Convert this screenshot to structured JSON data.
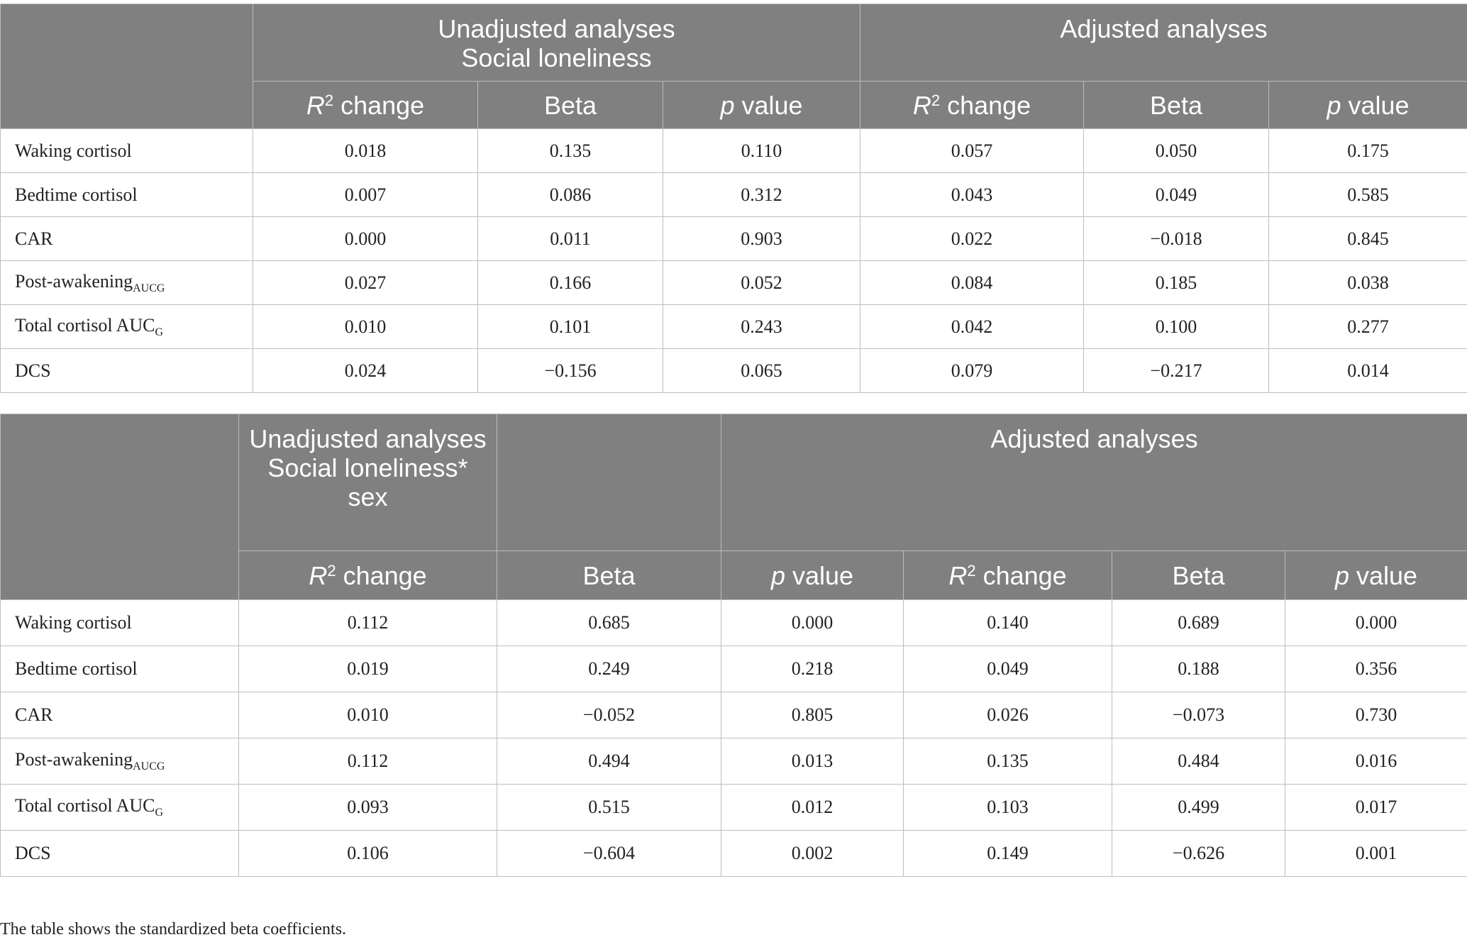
{
  "tables": [
    {
      "groups": [
        [
          "Unadjusted analyses",
          "Social loneliness"
        ],
        [
          "Adjusted analyses"
        ]
      ],
      "columns": [
        {
          "italic": "R",
          "sup": "2",
          "rest": "change"
        },
        {
          "rest": "Beta"
        },
        {
          "italic": "p",
          "rest": "value"
        },
        {
          "italic": "R",
          "sup": "2",
          "rest": "change"
        },
        {
          "rest": "Beta"
        },
        {
          "italic": "p",
          "rest": "value"
        }
      ],
      "rows": [
        {
          "label": {
            "text": "Waking cortisol"
          },
          "cells": [
            "0.018",
            "0.135",
            "0.110",
            "0.057",
            "0.050",
            "0.175"
          ]
        },
        {
          "label": {
            "text": "Bedtime cortisol"
          },
          "cells": [
            "0.007",
            "0.086",
            "0.312",
            "0.043",
            "0.049",
            "0.585"
          ]
        },
        {
          "label": {
            "text": "CAR"
          },
          "cells": [
            "0.000",
            "0.011",
            "0.903",
            "0.022",
            "−0.018",
            "0.845"
          ]
        },
        {
          "label": {
            "text": "Post-awakening",
            "sub": "AUCG"
          },
          "cells": [
            "0.027",
            "0.166",
            "0.052",
            "0.084",
            "0.185",
            "0.038"
          ]
        },
        {
          "label": {
            "text": "Total cortisol AUC",
            "sub": "G"
          },
          "cells": [
            "0.010",
            "0.101",
            "0.243",
            "0.042",
            "0.100",
            "0.277"
          ]
        },
        {
          "label": {
            "text": "DCS"
          },
          "cells": [
            "0.024",
            "−0.156",
            "0.065",
            "0.079",
            "−0.217",
            "0.014"
          ]
        }
      ]
    },
    {
      "groups": [
        [
          "Unadjusted analyses",
          "Social loneliness* sex"
        ],
        [
          "Adjusted analyses"
        ]
      ],
      "columns": [
        {
          "italic": "R",
          "sup": "2",
          "rest": "change"
        },
        {
          "rest": "Beta"
        },
        {
          "italic": "p",
          "rest": "value"
        },
        {
          "italic": "R",
          "sup": "2",
          "rest": "change"
        },
        {
          "rest": "Beta"
        },
        {
          "italic": "p",
          "rest": "value"
        }
      ],
      "rows": [
        {
          "label": {
            "text": "Waking cortisol"
          },
          "cells": [
            "0.112",
            "0.685",
            "0.000",
            "0.140",
            "0.689",
            "0.000"
          ]
        },
        {
          "label": {
            "text": "Bedtime cortisol"
          },
          "cells": [
            "0.019",
            "0.249",
            "0.218",
            "0.049",
            "0.188",
            "0.356"
          ]
        },
        {
          "label": {
            "text": "CAR"
          },
          "cells": [
            "0.010",
            "−0.052",
            "0.805",
            "0.026",
            "−0.073",
            "0.730"
          ]
        },
        {
          "label": {
            "text": "Post-awakening",
            "sub": "AUCG"
          },
          "cells": [
            "0.112",
            "0.494",
            "0.013",
            "0.135",
            "0.484",
            "0.016"
          ]
        },
        {
          "label": {
            "text": "Total cortisol AUC",
            "sub": "G"
          },
          "cells": [
            "0.093",
            "0.515",
            "0.012",
            "0.103",
            "0.499",
            "0.017"
          ]
        },
        {
          "label": {
            "text": "DCS"
          },
          "cells": [
            "0.106",
            "−0.604",
            "0.002",
            "0.149",
            "−0.626",
            "0.001"
          ]
        }
      ]
    }
  ],
  "footnote": "The table shows the standardized beta coefficients."
}
